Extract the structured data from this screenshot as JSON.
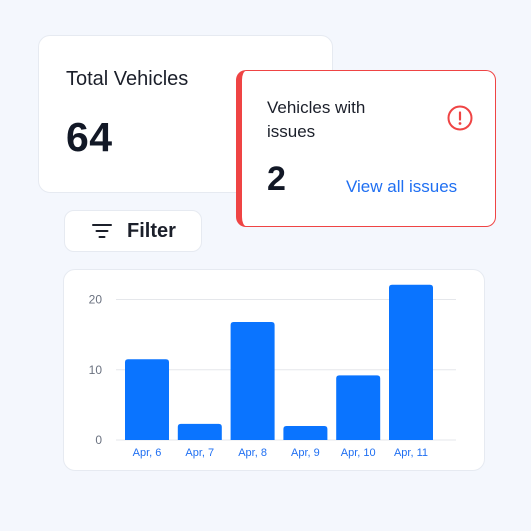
{
  "total_card": {
    "title": "Total Vehicles",
    "value": "64"
  },
  "issues_card": {
    "title": "Vehicles with issues",
    "value": "2",
    "link_label": "View all issues",
    "alert_icon": "alert-circle-icon",
    "accent_color": "#ef4444"
  },
  "filter": {
    "label": "Filter",
    "icon": "filter-lines-icon"
  },
  "colors": {
    "bar": "#0a74ff",
    "link": "#1f6ff2",
    "background": "#f4f7fd"
  },
  "chart_data": {
    "type": "bar",
    "categories": [
      "Apr, 6",
      "Apr, 7",
      "Apr, 8",
      "Apr, 9",
      "Apr, 10",
      "Apr, 11"
    ],
    "values": [
      11.5,
      2.3,
      16.8,
      2.0,
      9.2,
      22.1
    ],
    "yticks": [
      0,
      10,
      20
    ],
    "ylim": [
      0,
      22.5
    ],
    "grid": true,
    "title": "",
    "xlabel": "",
    "ylabel": ""
  }
}
